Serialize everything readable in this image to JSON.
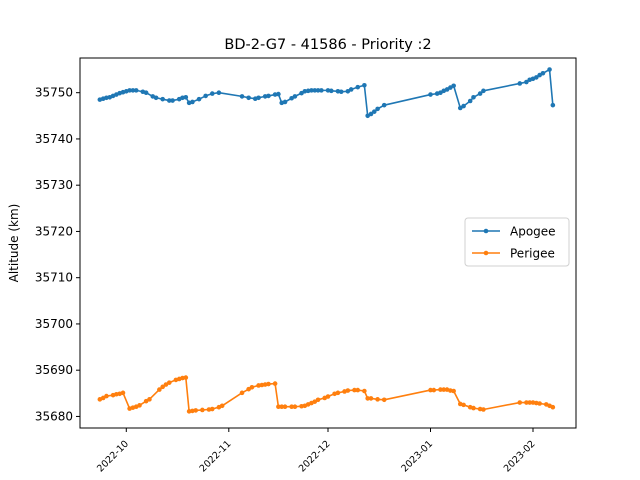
{
  "chart_data": {
    "type": "line",
    "title": "BD-2-G7 - 41586 - Priority :2",
    "xlabel": "",
    "ylabel": "Altitude (km)",
    "x_type": "date",
    "xlim": [
      "2022-09-17",
      "2023-02-14"
    ],
    "ylim": [
      35677.5,
      35757.5
    ],
    "x_ticks": [
      "2022-10-01",
      "2022-11-01",
      "2022-12-01",
      "2023-01-01",
      "2023-02-01"
    ],
    "x_tick_labels": [
      "2022-10",
      "2022-11",
      "2022-12",
      "2023-01",
      "2023-02"
    ],
    "y_ticks": [
      35680,
      35690,
      35700,
      35710,
      35720,
      35730,
      35740,
      35750
    ],
    "grid": false,
    "legend_position": "center-right",
    "series": [
      {
        "name": "Apogee",
        "color": "#1f77b4",
        "marker": "circle",
        "points": [
          [
            "2022-09-23",
            35748.5
          ],
          [
            "2022-09-24",
            35748.7
          ],
          [
            "2022-09-25",
            35748.9
          ],
          [
            "2022-09-26",
            35749.0
          ],
          [
            "2022-09-27",
            35749.3
          ],
          [
            "2022-09-28",
            35749.6
          ],
          [
            "2022-09-29",
            35749.9
          ],
          [
            "2022-09-30",
            35750.1
          ],
          [
            "2022-10-01",
            35750.3
          ],
          [
            "2022-10-02",
            35750.5
          ],
          [
            "2022-10-03",
            35750.5
          ],
          [
            "2022-10-04",
            35750.5
          ],
          [
            "2022-10-06",
            35750.2
          ],
          [
            "2022-10-07",
            35750.0
          ],
          [
            "2022-10-09",
            35749.2
          ],
          [
            "2022-10-10",
            35748.9
          ],
          [
            "2022-10-12",
            35748.6
          ],
          [
            "2022-10-14",
            35748.3
          ],
          [
            "2022-10-15",
            35748.3
          ],
          [
            "2022-10-17",
            35748.6
          ],
          [
            "2022-10-18",
            35748.9
          ],
          [
            "2022-10-19",
            35749.0
          ],
          [
            "2022-10-20",
            35747.8
          ],
          [
            "2022-10-21",
            35748.0
          ],
          [
            "2022-10-23",
            35748.6
          ],
          [
            "2022-10-25",
            35749.3
          ],
          [
            "2022-10-27",
            35749.8
          ],
          [
            "2022-10-29",
            35750.0
          ],
          [
            "2022-11-05",
            35749.2
          ],
          [
            "2022-11-07",
            35748.9
          ],
          [
            "2022-11-09",
            35748.7
          ],
          [
            "2022-11-10",
            35748.9
          ],
          [
            "2022-11-12",
            35749.2
          ],
          [
            "2022-11-13",
            35749.3
          ],
          [
            "2022-11-15",
            35749.6
          ],
          [
            "2022-11-16",
            35749.7
          ],
          [
            "2022-11-17",
            35747.8
          ],
          [
            "2022-11-18",
            35748.0
          ],
          [
            "2022-11-20",
            35748.8
          ],
          [
            "2022-11-21",
            35749.2
          ],
          [
            "2022-11-23",
            35749.9
          ],
          [
            "2022-11-24",
            35750.3
          ],
          [
            "2022-11-25",
            35750.4
          ],
          [
            "2022-11-26",
            35750.5
          ],
          [
            "2022-11-27",
            35750.5
          ],
          [
            "2022-11-28",
            35750.5
          ],
          [
            "2022-11-29",
            35750.5
          ],
          [
            "2022-12-01",
            35750.5
          ],
          [
            "2022-12-02",
            35750.4
          ],
          [
            "2022-12-04",
            35750.3
          ],
          [
            "2022-12-05",
            35750.2
          ],
          [
            "2022-12-07",
            35750.3
          ],
          [
            "2022-12-08",
            35750.7
          ],
          [
            "2022-12-10",
            35751.2
          ],
          [
            "2022-12-12",
            35751.6
          ],
          [
            "2022-12-13",
            35745.0
          ],
          [
            "2022-12-14",
            35745.4
          ],
          [
            "2022-12-15",
            35745.9
          ],
          [
            "2022-12-16",
            35746.5
          ],
          [
            "2022-12-18",
            35747.3
          ],
          [
            "2023-01-01",
            35749.6
          ],
          [
            "2023-01-03",
            35749.8
          ],
          [
            "2023-01-04",
            35750.0
          ],
          [
            "2023-01-05",
            35750.4
          ],
          [
            "2023-01-06",
            35750.7
          ],
          [
            "2023-01-07",
            35751.1
          ],
          [
            "2023-01-08",
            35751.5
          ],
          [
            "2023-01-10",
            35746.7
          ],
          [
            "2023-01-11",
            35747.1
          ],
          [
            "2023-01-13",
            35748.2
          ],
          [
            "2023-01-14",
            35749.0
          ],
          [
            "2023-01-16",
            35749.8
          ],
          [
            "2023-01-17",
            35750.4
          ],
          [
            "2023-01-28",
            35752.0
          ],
          [
            "2023-01-30",
            35752.3
          ],
          [
            "2023-01-31",
            35752.8
          ],
          [
            "2023-02-01",
            35753.0
          ],
          [
            "2023-02-02",
            35753.3
          ],
          [
            "2023-02-03",
            35753.8
          ],
          [
            "2023-02-04",
            35754.2
          ],
          [
            "2023-02-06",
            35755.0
          ],
          [
            "2023-02-07",
            35747.3
          ]
        ]
      },
      {
        "name": "Perigee",
        "color": "#ff7f0e",
        "marker": "circle",
        "points": [
          [
            "2022-09-23",
            35683.7
          ],
          [
            "2022-09-24",
            35684.0
          ],
          [
            "2022-09-25",
            35684.4
          ],
          [
            "2022-09-27",
            35684.6
          ],
          [
            "2022-09-28",
            35684.8
          ],
          [
            "2022-09-29",
            35684.9
          ],
          [
            "2022-09-30",
            35685.1
          ],
          [
            "2022-10-02",
            35681.7
          ],
          [
            "2022-10-03",
            35681.9
          ],
          [
            "2022-10-04",
            35682.1
          ],
          [
            "2022-10-05",
            35682.4
          ],
          [
            "2022-10-07",
            35683.3
          ],
          [
            "2022-10-08",
            35683.7
          ],
          [
            "2022-10-11",
            35685.8
          ],
          [
            "2022-10-12",
            35686.4
          ],
          [
            "2022-10-13",
            35686.9
          ],
          [
            "2022-10-14",
            35687.3
          ],
          [
            "2022-10-16",
            35687.9
          ],
          [
            "2022-10-17",
            35688.1
          ],
          [
            "2022-10-18",
            35688.3
          ],
          [
            "2022-10-19",
            35688.4
          ],
          [
            "2022-10-20",
            35681.1
          ],
          [
            "2022-10-21",
            35681.2
          ],
          [
            "2022-10-22",
            35681.3
          ],
          [
            "2022-10-24",
            35681.4
          ],
          [
            "2022-10-26",
            35681.5
          ],
          [
            "2022-10-27",
            35681.6
          ],
          [
            "2022-10-29",
            35682.0
          ],
          [
            "2022-10-30",
            35682.3
          ],
          [
            "2022-11-05",
            35685.1
          ],
          [
            "2022-11-07",
            35685.9
          ],
          [
            "2022-11-08",
            35686.3
          ],
          [
            "2022-11-10",
            35686.7
          ],
          [
            "2022-11-11",
            35686.8
          ],
          [
            "2022-11-12",
            35686.9
          ],
          [
            "2022-11-13",
            35687.0
          ],
          [
            "2022-11-15",
            35687.1
          ],
          [
            "2022-11-16",
            35682.1
          ],
          [
            "2022-11-17",
            35682.1
          ],
          [
            "2022-11-18",
            35682.1
          ],
          [
            "2022-11-20",
            35682.1
          ],
          [
            "2022-11-21",
            35682.1
          ],
          [
            "2022-11-23",
            35682.2
          ],
          [
            "2022-11-24",
            35682.3
          ],
          [
            "2022-11-25",
            35682.6
          ],
          [
            "2022-11-26",
            35682.9
          ],
          [
            "2022-11-27",
            35683.2
          ],
          [
            "2022-11-28",
            35683.6
          ],
          [
            "2022-11-30",
            35684.0
          ],
          [
            "2022-12-01",
            35684.3
          ],
          [
            "2022-12-03",
            35684.9
          ],
          [
            "2022-12-04",
            35685.1
          ],
          [
            "2022-12-06",
            35685.4
          ],
          [
            "2022-12-07",
            35685.6
          ],
          [
            "2022-12-09",
            35685.7
          ],
          [
            "2022-12-10",
            35685.7
          ],
          [
            "2022-12-12",
            35685.5
          ],
          [
            "2022-12-13",
            35683.9
          ],
          [
            "2022-12-14",
            35683.9
          ],
          [
            "2022-12-16",
            35683.7
          ],
          [
            "2022-12-18",
            35683.6
          ],
          [
            "2023-01-01",
            35685.7
          ],
          [
            "2023-01-02",
            35685.7
          ],
          [
            "2023-01-04",
            35685.8
          ],
          [
            "2023-01-05",
            35685.8
          ],
          [
            "2023-01-06",
            35685.8
          ],
          [
            "2023-01-07",
            35685.6
          ],
          [
            "2023-01-08",
            35685.5
          ],
          [
            "2023-01-10",
            35682.7
          ],
          [
            "2023-01-11",
            35682.5
          ],
          [
            "2023-01-13",
            35682.0
          ],
          [
            "2023-01-14",
            35681.8
          ],
          [
            "2023-01-16",
            35681.6
          ],
          [
            "2023-01-17",
            35681.5
          ],
          [
            "2023-01-28",
            35683.0
          ],
          [
            "2023-01-30",
            35683.0
          ],
          [
            "2023-01-31",
            35683.0
          ],
          [
            "2023-02-01",
            35683.0
          ],
          [
            "2023-02-02",
            35682.9
          ],
          [
            "2023-02-03",
            35682.8
          ],
          [
            "2023-02-05",
            35682.6
          ],
          [
            "2023-02-06",
            35682.3
          ],
          [
            "2023-02-07",
            35682.0
          ]
        ]
      }
    ]
  }
}
